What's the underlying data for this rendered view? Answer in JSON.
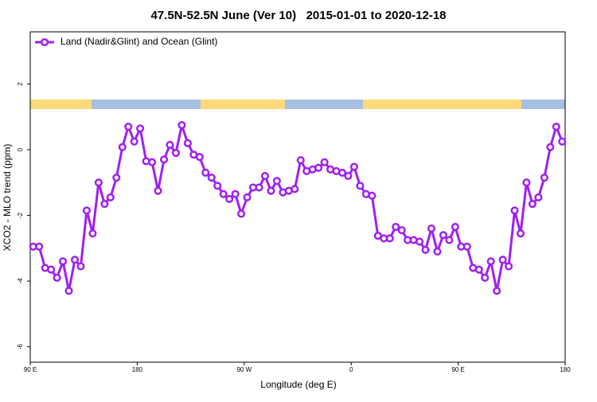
{
  "chart_data": {
    "type": "line",
    "title": "47.5N-52.5N June (Ver 10)   2015-01-01 to 2020-12-18",
    "x_label": "Longitude (deg E)",
    "y_label": "XCO2 - MLO trend (ppm)",
    "x": [
      92.5,
      97.5,
      102.5,
      107.5,
      112.5,
      117.5,
      122.5,
      127.5,
      132.5,
      137.5,
      142.5,
      147.5,
      152.5,
      157.5,
      162.5,
      167.5,
      172.5,
      177.5,
      182.5,
      187.5,
      192.5,
      197.5,
      202.5,
      207.5,
      212.5,
      217.5,
      222.5,
      227.5,
      232.5,
      237.5,
      242.5,
      247.5,
      252.5,
      257.5,
      262.5,
      267.5,
      272.5,
      277.5,
      282.5,
      287.5,
      292.5,
      297.5,
      302.5,
      307.5,
      312.5,
      317.5,
      322.5,
      327.5,
      332.5,
      337.5,
      342.5,
      347.5,
      352.5,
      357.5,
      362.5,
      367.5,
      372.5,
      377.5,
      382.5,
      387.5,
      392.5,
      397.5,
      402.5,
      407.5,
      412.5,
      417.5,
      422.5,
      427.5,
      432.5,
      437.5,
      442.5,
      447.5,
      452.5,
      457.5,
      462.5,
      467.5,
      472.5,
      477.5,
      482.5,
      487.5,
      492.5,
      497.5,
      502.5,
      507.5,
      512.5,
      517.5,
      522.5,
      527.5,
      532.5,
      537.5
    ],
    "series": [
      {
        "name": "Land (Nadir&Glint) and Ocean (Glint)",
        "color": "#a020f0",
        "values": [
          -2.95,
          -2.95,
          -3.6,
          -3.65,
          -3.9,
          -3.4,
          -4.3,
          -3.35,
          -3.55,
          -1.85,
          -2.55,
          -1.0,
          -1.65,
          -1.45,
          -0.85,
          0.08,
          0.7,
          0.25,
          0.65,
          -0.35,
          -0.38,
          -1.25,
          -0.3,
          0.15,
          -0.1,
          0.75,
          0.2,
          -0.15,
          -0.22,
          -0.7,
          -0.85,
          -1.1,
          -1.35,
          -1.5,
          -1.35,
          -1.95,
          -1.45,
          -1.15,
          -1.15,
          -0.8,
          -1.25,
          -0.95,
          -1.3,
          -1.25,
          -1.2,
          -0.32,
          -0.65,
          -0.6,
          -0.55,
          -0.38,
          -0.6,
          -0.65,
          -0.7,
          -0.8,
          -0.52,
          -1.1,
          -1.35,
          -1.4,
          -2.62,
          -2.7,
          -2.7,
          -2.35,
          -2.45,
          -2.75,
          -2.75,
          -2.8,
          -3.05,
          -2.4,
          -3.1,
          -2.6,
          -2.75,
          -2.35,
          -2.95,
          -2.95,
          -3.6,
          -3.65,
          -3.9,
          -3.4,
          -4.3,
          -3.35,
          -3.55,
          -1.85,
          -2.55,
          -1.0,
          -1.65,
          -1.45,
          -0.85,
          0.08,
          0.7,
          0.25
        ]
      }
    ],
    "xlim": [
      90,
      540
    ],
    "xticks": [
      {
        "value": 90,
        "label": "90 E"
      },
      {
        "value": 180,
        "label": "180"
      },
      {
        "value": 270,
        "label": "90 W"
      },
      {
        "value": 360,
        "label": "0"
      },
      {
        "value": 450,
        "label": "90 E"
      },
      {
        "value": 540,
        "label": "180"
      }
    ],
    "ylim": [
      -6.47,
      3.59
    ],
    "yticks": [
      -6,
      -4,
      -2,
      0,
      2
    ],
    "grid": false,
    "legend": "top-left"
  }
}
